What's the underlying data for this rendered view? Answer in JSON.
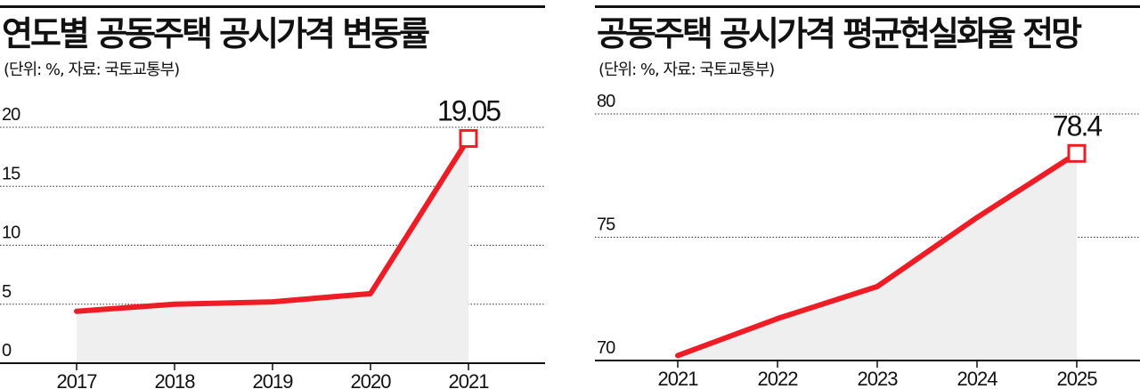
{
  "colors": {
    "line": "#ee1c25",
    "area": "#efefef",
    "grid": "#333333",
    "text": "#111111"
  },
  "charts": [
    {
      "title": "연도별 공동주택 공시가격 변동률",
      "subtitle": "(단위: %, 자료: 국토교통부)"
    },
    {
      "title": "공동주택 공시가격 평균현실화율 전망",
      "subtitle": "(단위: %, 자료: 국토교통부)"
    }
  ],
  "chart_data": [
    {
      "type": "area",
      "title": "연도별 공동주택 공시가격 변동률",
      "subtitle": "(단위: %, 자료: 국토교통부)",
      "unit": "%",
      "source": "국토교통부",
      "xlabel": "",
      "ylabel": "",
      "categories": [
        "2017",
        "2018",
        "2019",
        "2020",
        "2021"
      ],
      "series": [
        {
          "values": [
            4.4,
            5.0,
            5.2,
            5.9,
            19.05
          ]
        }
      ],
      "ylim": [
        0,
        20
      ],
      "yticks": [
        "0",
        "5",
        "10",
        "15",
        "20"
      ],
      "grid": true,
      "annotation": {
        "category": "2021",
        "label": "19.05"
      }
    },
    {
      "type": "area",
      "title": "공동주택 공시가격 평균현실화율 전망",
      "subtitle": "(단위: %, 자료: 국토교통부)",
      "unit": "%",
      "source": "국토교통부",
      "xlabel": "",
      "ylabel": "",
      "categories": [
        "2021",
        "2022",
        "2023",
        "2024",
        "2025"
      ],
      "series": [
        {
          "values": [
            70.2,
            71.7,
            73.0,
            75.8,
            78.4
          ]
        }
      ],
      "ylim": [
        70,
        80
      ],
      "yticks": [
        "70",
        "75",
        "80"
      ],
      "grid": true,
      "annotation": {
        "category": "2025",
        "label": "78.4"
      }
    }
  ]
}
